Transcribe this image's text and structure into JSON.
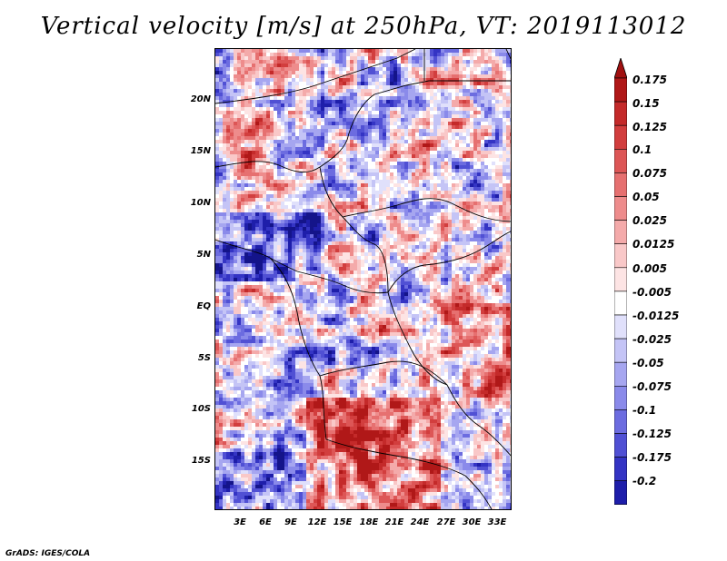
{
  "title": "Vertical velocity [m/s] at 250hPa, VT: 2019113012",
  "credit": "GrADS: IGES/COLA",
  "map": {
    "lat_labels": [
      "20N",
      "15N",
      "10N",
      "5N",
      "EQ",
      "5S",
      "10S",
      "15S"
    ],
    "lat_values": [
      20,
      15,
      10,
      5,
      0,
      -5,
      -10,
      -15
    ],
    "lon_labels": [
      "3E",
      "6E",
      "9E",
      "12E",
      "15E",
      "18E",
      "21E",
      "24E",
      "27E",
      "30E",
      "33E"
    ],
    "lon_values": [
      3,
      6,
      9,
      12,
      15,
      18,
      21,
      24,
      27,
      30,
      33
    ],
    "lon_range": [
      0,
      34.5
    ],
    "lat_range": [
      -20,
      24.5
    ]
  },
  "colorbar": {
    "labels": [
      "0.175",
      "0.15",
      "0.125",
      "0.1",
      "0.075",
      "0.05",
      "0.025",
      "0.0125",
      "0.005",
      "-0.005",
      "-0.0125",
      "-0.025",
      "-0.05",
      "-0.075",
      "-0.1",
      "-0.125",
      "-0.175",
      "-0.2"
    ],
    "colors": [
      "#b01818",
      "#c42a2a",
      "#d23e3e",
      "#dd5656",
      "#e67070",
      "#ee8c8c",
      "#f4aaaa",
      "#f9c8c8",
      "#fde4e4",
      "#ffffff",
      "#e0e0fb",
      "#c4c4f6",
      "#a6a6f0",
      "#8a8aea",
      "#6c6ce0",
      "#5050d4",
      "#3434c4",
      "#1e1eaa",
      "#14148a"
    ],
    "top_arrow_color": "#a01010",
    "bottom_arrow_color": "#10107a"
  }
}
